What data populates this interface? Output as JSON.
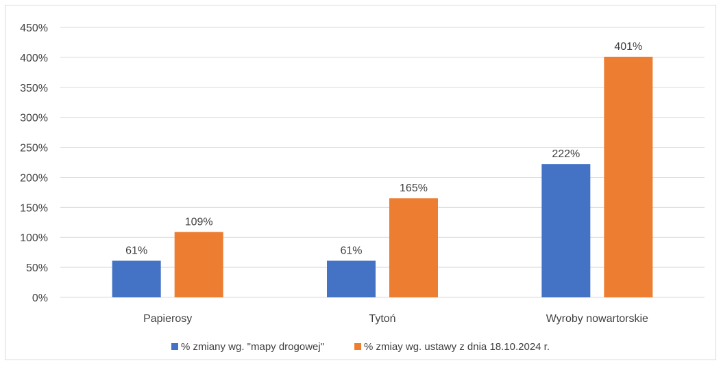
{
  "chart_data": {
    "type": "bar",
    "title": "",
    "xlabel": "",
    "ylabel": "",
    "categories": [
      "Papierosy",
      "Tytoń",
      "Wyroby nowartorskie"
    ],
    "series": [
      {
        "name": "% zmiany wg. \"mapy drogowej\"",
        "color": "#4472c4",
        "values": [
          61,
          61,
          222
        ],
        "labels": [
          "61%",
          "61%",
          "222%"
        ]
      },
      {
        "name": "% zmiay wg. ustawy z dnia 18.10.2024 r.",
        "color": "#ed7d31",
        "values": [
          109,
          165,
          401
        ],
        "labels": [
          "109%",
          "165%",
          "401%"
        ]
      }
    ],
    "ylim": [
      0,
      450
    ],
    "yticks": [
      0,
      50,
      100,
      150,
      200,
      250,
      300,
      350,
      400,
      450
    ],
    "ytick_labels": [
      "0%",
      "50%",
      "100%",
      "150%",
      "200%",
      "250%",
      "300%",
      "350%",
      "400%",
      "450%"
    ],
    "grid": true,
    "legend_position": "bottom",
    "gridline_color": "#d9d9d9",
    "text_color": "#404040"
  }
}
